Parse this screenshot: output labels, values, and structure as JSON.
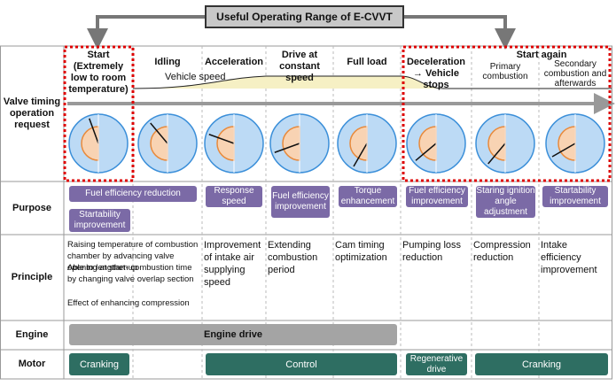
{
  "title": "Useful Operating Range of E-CVVT",
  "row_labels": [
    "Valve timing operation request",
    "Purpose",
    "Principle",
    "Engine",
    "Motor"
  ],
  "headers": [
    "Start (Extremely low to room temperature)",
    "Idling",
    "Acceleration",
    "Drive at constant speed",
    "Full load",
    "Deceleration → Vehicle stops"
  ],
  "start_again": {
    "label": "Start again",
    "sub": [
      "Primary combustion",
      "Secondary combustion and afterwards"
    ]
  },
  "vehicle_speed": "Vehicle speed",
  "purpose": [
    "Fuel efficiency reduction",
    "Startability improvement",
    "Response speed",
    "Fuel efficiency improvement",
    "Torque enhancement",
    "Fuel efficiency improvement",
    "Staring ignition angle adjustment",
    "Startability improvement"
  ],
  "principle_start": [
    "Raising temperature of combustion chamber by advancing valve opening at start-up",
    "Able to lengthen combustion time by changing valve overlap section",
    "Effect of enhancing compression"
  ],
  "principle": [
    "Improvement of intake air supplying speed",
    "Extending combustion period",
    "Cam timing optimization",
    "Pumping loss reduction",
    "Compression reduction",
    "Intake efficiency improvement"
  ],
  "engine": "Engine drive",
  "motor": [
    "Cranking",
    "Control",
    "Regenerative drive",
    "Cranking"
  ]
}
